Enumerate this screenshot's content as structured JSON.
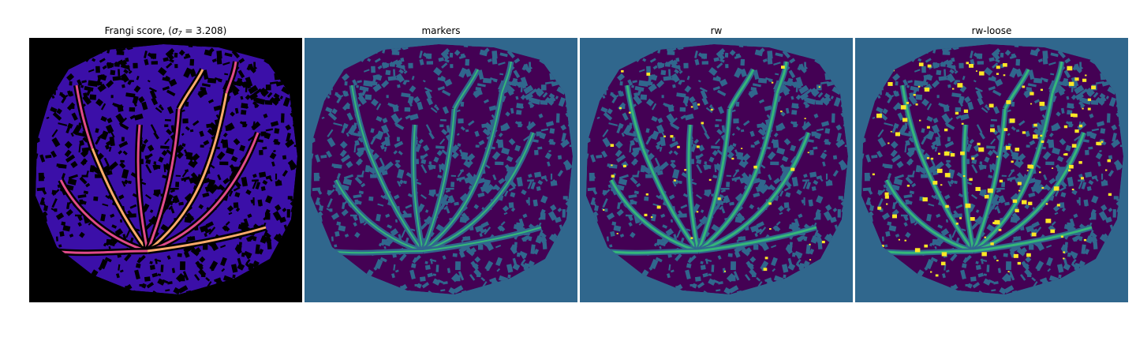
{
  "panels": [
    {
      "title_prefix": "Frangi score, (",
      "title_sigma": "σ",
      "title_sub": "7",
      "title_suffix": " = 3.208)",
      "colormap": "magma",
      "background_color": "#000000"
    },
    {
      "title": "markers",
      "colormap": "viridis",
      "background_color": "#30678d"
    },
    {
      "title": "rw",
      "colormap": "viridis",
      "background_color": "#30678d"
    },
    {
      "title": "rw-loose",
      "colormap": "viridis",
      "background_color": "#30678d"
    }
  ],
  "colors": {
    "dark_purple": "#440154",
    "teal": "#30678d",
    "green": "#35b779",
    "yellow": "#fde725",
    "magma_blue": "#3b0fa8",
    "magma_pink": "#e04b8a",
    "magma_orange": "#fcaa6b"
  }
}
